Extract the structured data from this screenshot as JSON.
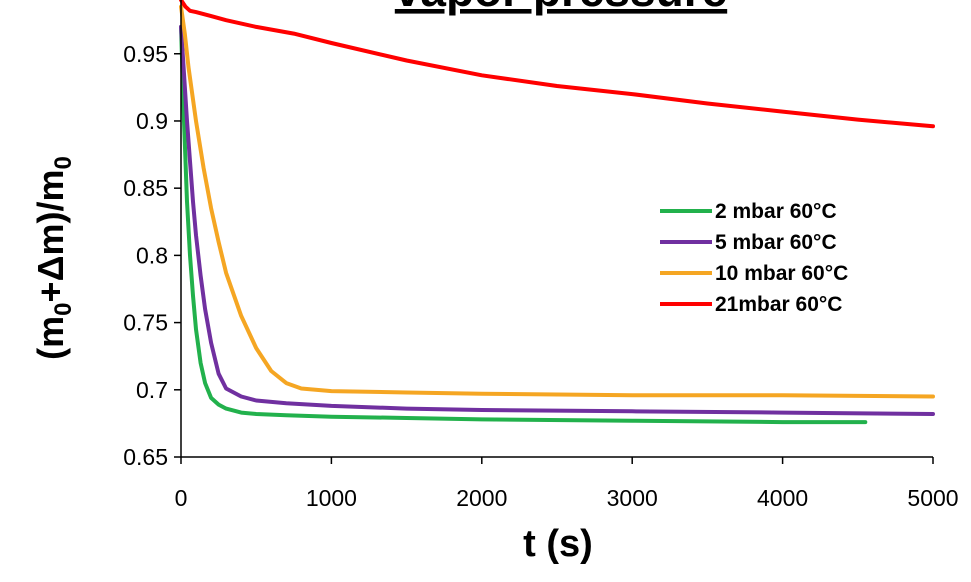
{
  "chart_data": {
    "type": "line",
    "title": "vapor pressure",
    "xlabel": "t (s)",
    "ylabel": {
      "p1": "(m",
      "s1": "0",
      "p2": "+Δm)/m",
      "s2": "0"
    },
    "xlim": [
      0,
      5000
    ],
    "ylim": [
      0.65,
      0.99
    ],
    "x_ticks": [
      0,
      1000,
      2000,
      3000,
      4000,
      5000
    ],
    "y_ticks": [
      0.65,
      0.7,
      0.75,
      0.8,
      0.85,
      0.9,
      0.95
    ],
    "x_tick_labels": [
      "0",
      "1000",
      "2000",
      "3000",
      "4000",
      "5000"
    ],
    "y_tick_labels": [
      "0.65",
      "0.7",
      "0.75",
      "0.8",
      "0.85",
      "0.9",
      "0.95"
    ],
    "grid": false,
    "legend_position": "right",
    "series": [
      {
        "name": "2 mbar 60°C",
        "color": "#22b14c",
        "x": [
          0,
          20,
          40,
          60,
          80,
          100,
          130,
          160,
          200,
          250,
          300,
          400,
          500,
          700,
          1000,
          1500,
          2000,
          3000,
          4000,
          4550
        ],
        "y": [
          0.97,
          0.9,
          0.84,
          0.8,
          0.77,
          0.745,
          0.72,
          0.705,
          0.694,
          0.689,
          0.686,
          0.683,
          0.682,
          0.681,
          0.68,
          0.679,
          0.678,
          0.677,
          0.676,
          0.676
        ]
      },
      {
        "name": "5 mbar 60°C",
        "color": "#7030a0",
        "x": [
          0,
          20,
          40,
          60,
          80,
          100,
          130,
          160,
          200,
          250,
          300,
          400,
          500,
          700,
          1000,
          1500,
          2000,
          3000,
          4000,
          5000
        ],
        "y": [
          0.97,
          0.935,
          0.9,
          0.87,
          0.84,
          0.815,
          0.785,
          0.76,
          0.735,
          0.712,
          0.701,
          0.695,
          0.692,
          0.69,
          0.688,
          0.686,
          0.685,
          0.684,
          0.683,
          0.682
        ]
      },
      {
        "name": "10 mbar 60°C",
        "color": "#f5a623",
        "x": [
          0,
          25,
          50,
          100,
          150,
          200,
          250,
          300,
          400,
          500,
          600,
          700,
          800,
          1000,
          1500,
          2000,
          3000,
          4000,
          5000
        ],
        "y": [
          0.985,
          0.965,
          0.94,
          0.9,
          0.865,
          0.835,
          0.81,
          0.787,
          0.755,
          0.731,
          0.714,
          0.705,
          0.701,
          0.699,
          0.698,
          0.697,
          0.696,
          0.696,
          0.695
        ]
      },
      {
        "name": "21mbar 60°C",
        "color": "#ff0000",
        "x": [
          0,
          30,
          60,
          100,
          200,
          300,
          500,
          750,
          1000,
          1500,
          2000,
          2500,
          3000,
          3500,
          4000,
          4500,
          5000
        ],
        "y": [
          0.99,
          0.985,
          0.982,
          0.981,
          0.978,
          0.975,
          0.97,
          0.965,
          0.958,
          0.945,
          0.934,
          0.926,
          0.92,
          0.913,
          0.907,
          0.901,
          0.896
        ]
      }
    ]
  }
}
